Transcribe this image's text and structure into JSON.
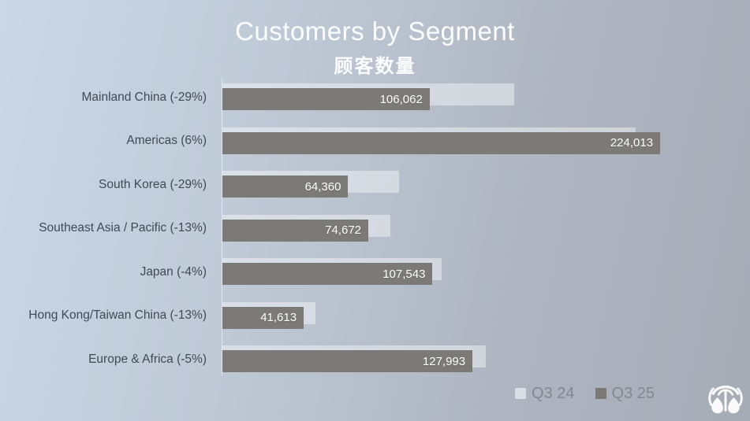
{
  "page": {
    "title": "Customers by Segment",
    "subtitle": "顾客数量"
  },
  "legend": {
    "items": [
      {
        "label": "Q3 24",
        "color": "#d9dee6"
      },
      {
        "label": "Q3 25",
        "color": "#7c7a77"
      }
    ]
  },
  "logo": {
    "name": "nu-skin-fountain-logo",
    "color": "#ffffff"
  },
  "colors": {
    "background_left": "#cbd8e6",
    "background_right": "#a6acb6",
    "bar_q3_24": "#d9dee6",
    "bar_q3_25": "#7c7a77",
    "category_text": "#3f4a55",
    "title_text": "#fcfdfe",
    "legend_text": "#82888f",
    "value_label_text": "#ffffff"
  },
  "chart_data": {
    "type": "bar",
    "orientation": "horizontal",
    "title": "Customers by Segment",
    "subtitle": "顾客数量",
    "categories": [
      "Mainland China (-29%)",
      "Americas (6%)",
      "South Korea (-29%)",
      "Southeast Asia / Pacific (-13%)",
      "Japan (-4%)",
      "Hong Kong/Taiwan China (-13%)",
      "Europe & Africa (-5%)"
    ],
    "changes": [
      "-29%",
      "6%",
      "-29%",
      "-13%",
      "-4%",
      "-13%",
      "-5%"
    ],
    "series": [
      {
        "name": "Q3 24",
        "color": "#d9dee6",
        "values": [
          149400,
          211300,
          90600,
          85800,
          112000,
          47800,
          134700
        ]
      },
      {
        "name": "Q3 25",
        "color": "#7c7a77",
        "values": [
          106062,
          224013,
          64360,
          74672,
          107543,
          41613,
          127993
        ]
      }
    ],
    "data_labels": [
      "106,062",
      "224,013",
      "64,360",
      "74,672",
      "107,543",
      "41,613",
      "127,993"
    ],
    "xlim": [
      0,
      270000
    ],
    "grid": false,
    "legend_position": "bottom-right",
    "value_labels_on": "Q3 25"
  }
}
